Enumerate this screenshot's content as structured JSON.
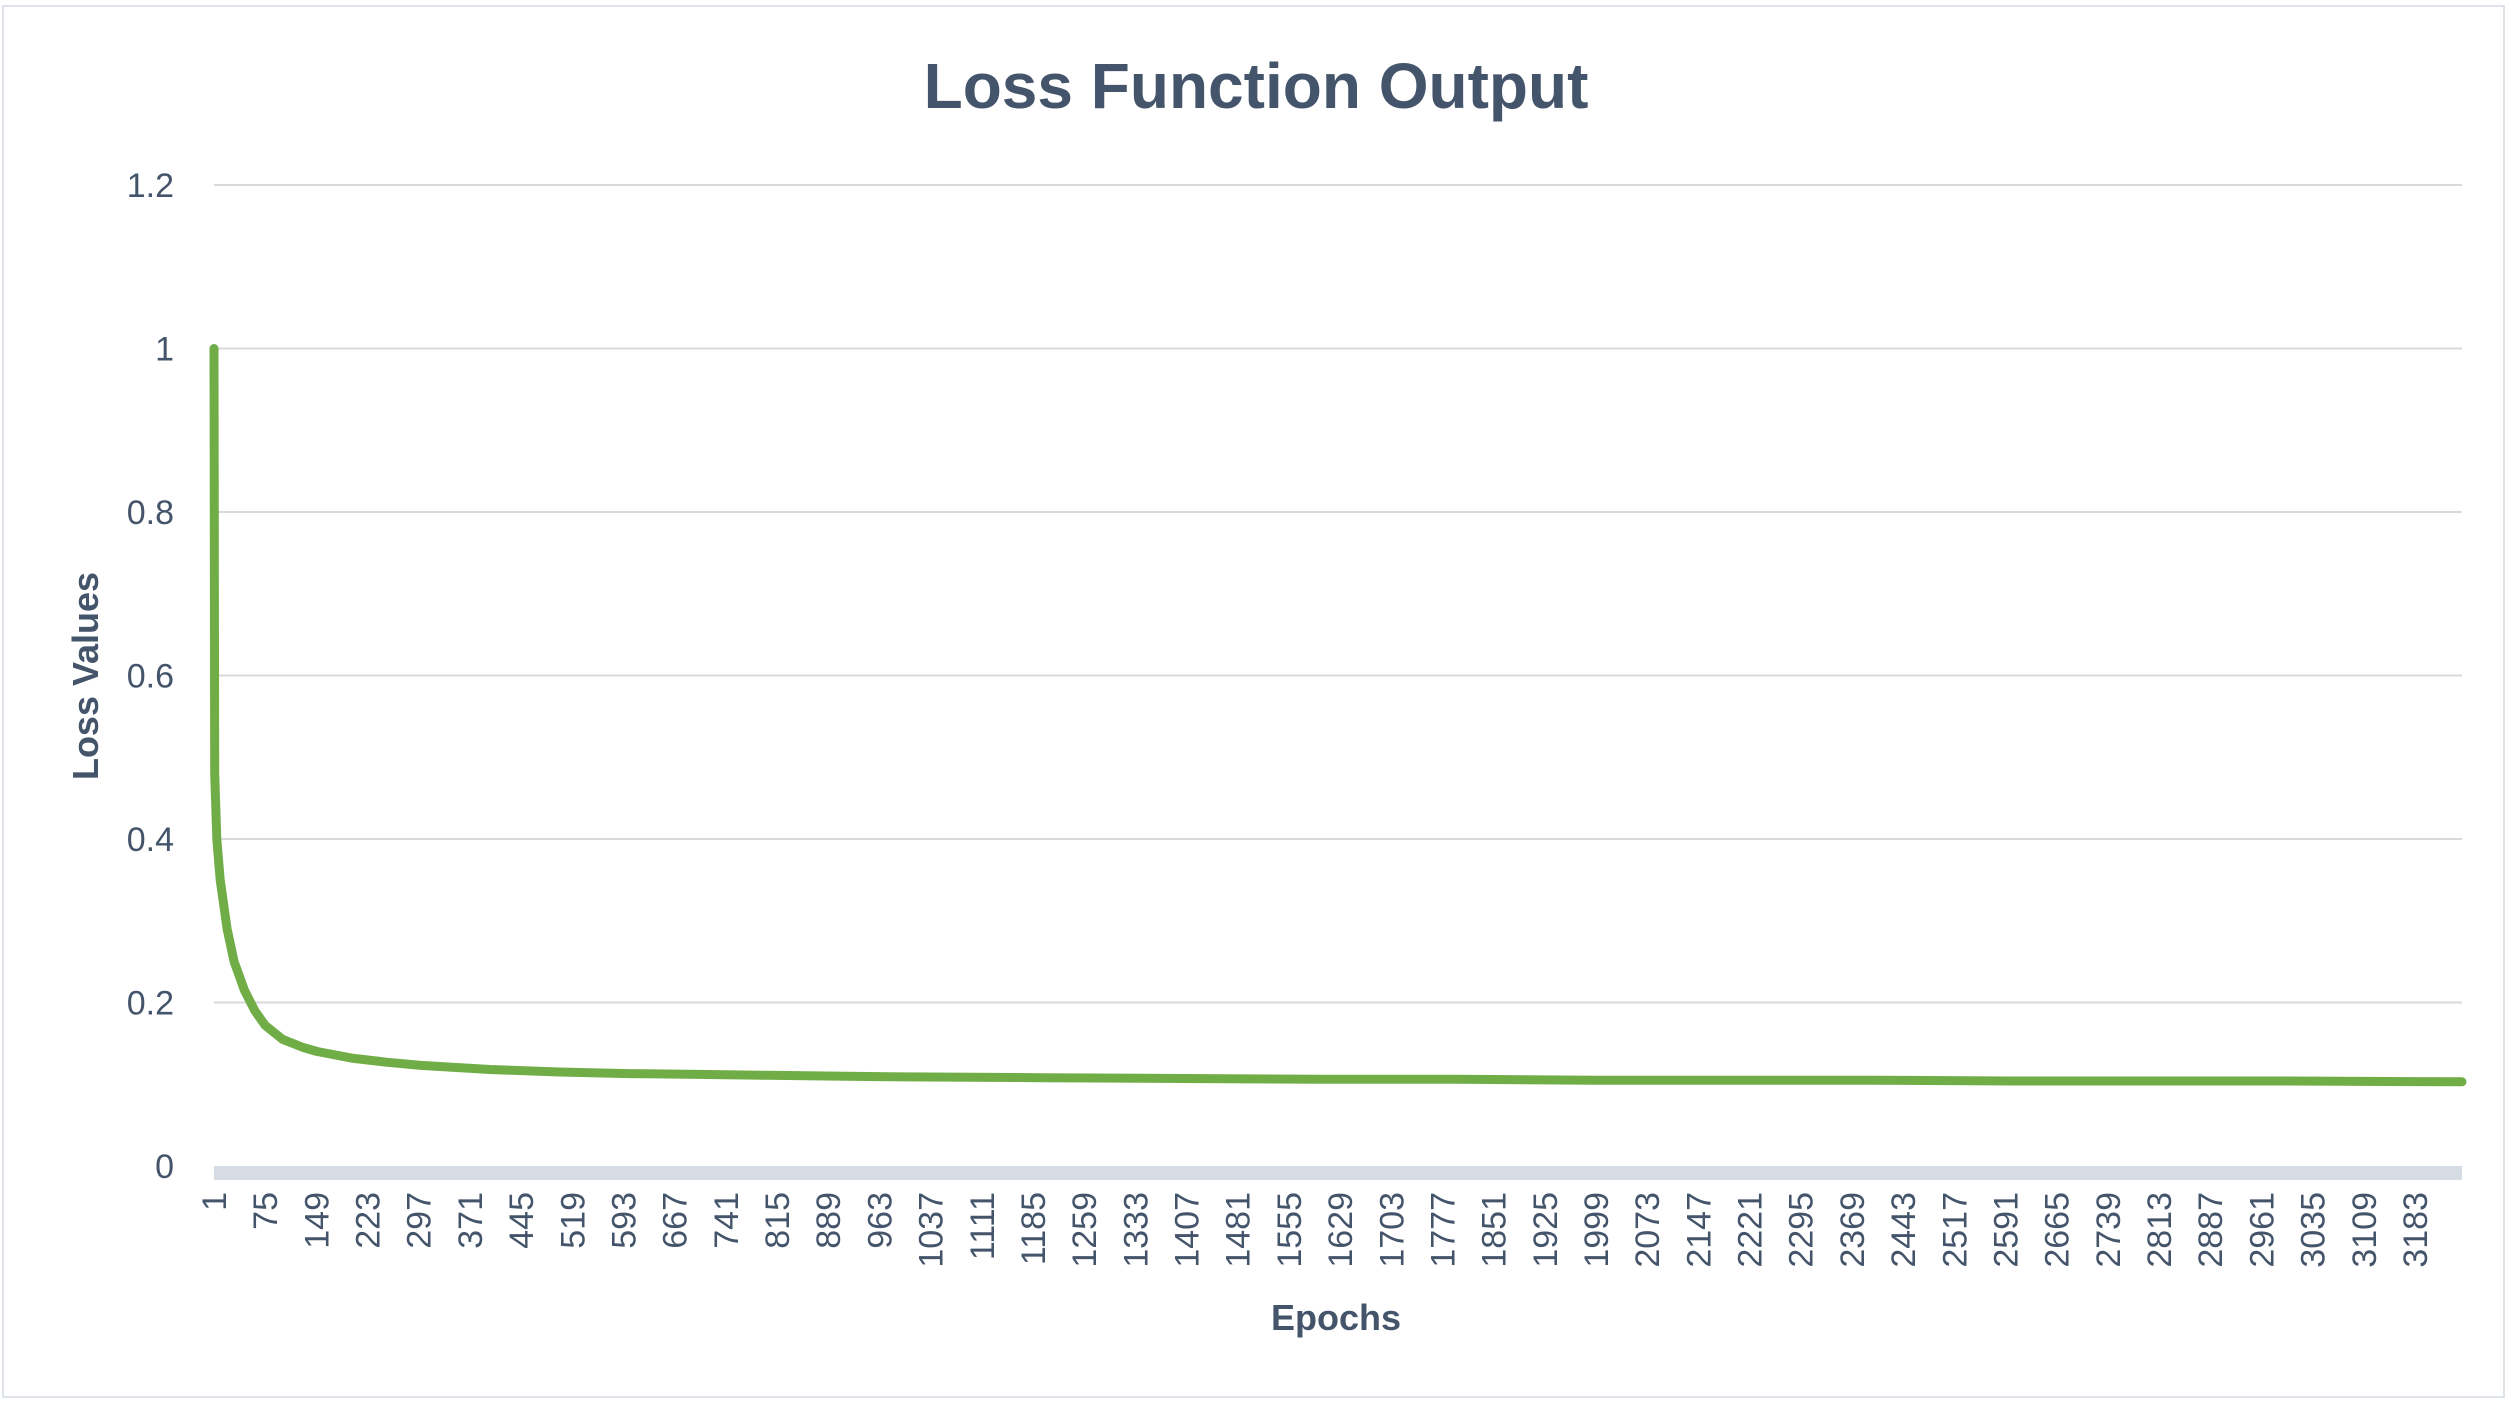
{
  "chart_data": {
    "type": "line",
    "title": "Loss Function Output",
    "xlabel": "Epochs",
    "ylabel": "Loss Values",
    "ylim": [
      0,
      1.2
    ],
    "yticks": [
      "0",
      "0.2",
      "0.4",
      "0.6",
      "0.8",
      "1",
      "1.2"
    ],
    "xlim": [
      1,
      3251
    ],
    "xticks": [
      "1",
      "75",
      "149",
      "223",
      "297",
      "371",
      "445",
      "519",
      "593",
      "667",
      "741",
      "815",
      "889",
      "963",
      "1037",
      "1111",
      "1185",
      "1259",
      "1333",
      "1407",
      "1481",
      "1555",
      "1629",
      "1703",
      "1777",
      "1851",
      "1925",
      "1999",
      "2073",
      "2147",
      "2221",
      "2295",
      "2369",
      "2443",
      "2517",
      "2591",
      "2665",
      "2739",
      "2813",
      "2887",
      "2961",
      "3035",
      "3109",
      "3183"
    ],
    "grid": true,
    "series": [
      {
        "color": "#70ad47",
        "points": [
          [
            1,
            1.0
          ],
          [
            2,
            0.48
          ],
          [
            5,
            0.4
          ],
          [
            10,
            0.35
          ],
          [
            20,
            0.29
          ],
          [
            30,
            0.25
          ],
          [
            45,
            0.215
          ],
          [
            60,
            0.19
          ],
          [
            75,
            0.172
          ],
          [
            100,
            0.155
          ],
          [
            130,
            0.145
          ],
          [
            150,
            0.14
          ],
          [
            200,
            0.132
          ],
          [
            250,
            0.127
          ],
          [
            300,
            0.123
          ],
          [
            400,
            0.118
          ],
          [
            500,
            0.115
          ],
          [
            600,
            0.113
          ],
          [
            700,
            0.112
          ],
          [
            800,
            0.111
          ],
          [
            900,
            0.11
          ],
          [
            1000,
            0.109
          ],
          [
            1200,
            0.108
          ],
          [
            1400,
            0.107
          ],
          [
            1600,
            0.106
          ],
          [
            1800,
            0.106
          ],
          [
            2000,
            0.105
          ],
          [
            2200,
            0.105
          ],
          [
            2400,
            0.105
          ],
          [
            2600,
            0.104
          ],
          [
            2800,
            0.104
          ],
          [
            3000,
            0.104
          ],
          [
            3251,
            0.103
          ]
        ]
      }
    ],
    "colors": {
      "text": "#44546a",
      "grid": "#d9d9d9",
      "axis_band": "#d6dce4",
      "line": "#70ad47"
    }
  }
}
